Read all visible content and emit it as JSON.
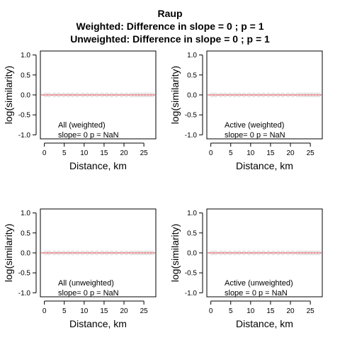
{
  "figure": {
    "title_lines": [
      "Raup",
      "Weighted: Difference in slope = 0 ; p = 1",
      "Unweighted: Difference in slope = 0 ; p = 1"
    ],
    "series_color": "#e8848a",
    "point_color": "#d9d9d9"
  },
  "chart_data": [
    {
      "type": "scatter",
      "panel": "top-left",
      "xlabel": "Distance, km",
      "ylabel": "log(similarity)",
      "xlim": [
        -1,
        28
      ],
      "ylim": [
        -1.1,
        1.1
      ],
      "xticks": [
        0,
        5,
        10,
        15,
        20,
        25
      ],
      "yticks": [
        -1.0,
        -0.5,
        0.0,
        0.5,
        1.0
      ],
      "annotation": [
        "All (weighted)",
        "slope= 0  p =  NaN"
      ],
      "fit_line": {
        "slope": 0,
        "intercept": 0,
        "x": [
          -1,
          28
        ]
      },
      "points": {
        "x": [
          0.3,
          1.2,
          2.5,
          3.6,
          4.8,
          6.0,
          7.1,
          8.3,
          9.6,
          10.8,
          12.0,
          13.2,
          14.5,
          15.7,
          16.9,
          18.1,
          19.4,
          20.6,
          21.8,
          22.6,
          23.4,
          24.1,
          24.9,
          25.6,
          26.4,
          27.1
        ],
        "y": 0
      }
    },
    {
      "type": "scatter",
      "panel": "top-right",
      "xlabel": "Distance, km",
      "ylabel": "log(similarity)",
      "xlim": [
        -1,
        28
      ],
      "ylim": [
        -1.1,
        1.1
      ],
      "xticks": [
        0,
        5,
        10,
        15,
        20,
        25
      ],
      "yticks": [
        -1.0,
        -0.5,
        0.0,
        0.5,
        1.0
      ],
      "annotation": [
        "Active (weighted)",
        "slope= 0  p =  NaN"
      ],
      "fit_line": {
        "slope": 0,
        "intercept": 0,
        "x": [
          -1,
          28
        ]
      },
      "points": {
        "x": [
          0.3,
          1.2,
          2.5,
          3.6,
          4.8,
          6.0,
          7.1,
          8.3,
          9.6,
          10.8,
          12.0,
          13.2,
          14.5,
          15.7,
          16.9,
          18.1,
          19.4,
          20.6,
          21.8,
          22.6,
          23.4,
          24.1,
          24.9,
          25.6,
          26.4,
          27.1
        ],
        "y": 0
      }
    },
    {
      "type": "scatter",
      "panel": "bottom-left",
      "xlabel": "Distance, km",
      "ylabel": "log(similarity)",
      "xlim": [
        -1,
        28
      ],
      "ylim": [
        -1.1,
        1.1
      ],
      "xticks": [
        0,
        5,
        10,
        15,
        20,
        25
      ],
      "yticks": [
        -1.0,
        -0.5,
        0.0,
        0.5,
        1.0
      ],
      "annotation": [
        "All (unweighted)",
        "slope= 0  p =  NaN"
      ],
      "fit_line": {
        "slope": 0,
        "intercept": 0,
        "x": [
          -1,
          28
        ]
      },
      "points": {
        "x": [
          0.3,
          1.2,
          2.5,
          3.6,
          4.8,
          6.0,
          7.1,
          8.3,
          9.6,
          10.8,
          12.0,
          13.2,
          14.5,
          15.7,
          16.9,
          18.1,
          19.4,
          20.6,
          21.8,
          22.6,
          23.4,
          24.1,
          24.9,
          25.6,
          26.4,
          27.1
        ],
        "y": 0
      }
    },
    {
      "type": "scatter",
      "panel": "bottom-right",
      "xlabel": "Distance, km",
      "ylabel": "log(similarity)",
      "xlim": [
        -1,
        28
      ],
      "ylim": [
        -1.1,
        1.1
      ],
      "xticks": [
        0,
        5,
        10,
        15,
        20,
        25
      ],
      "yticks": [
        -1.0,
        -0.5,
        0.0,
        0.5,
        1.0
      ],
      "annotation": [
        "Active (unweighted)",
        "slope =  0  p =  NaN"
      ],
      "fit_line": {
        "slope": 0,
        "intercept": 0,
        "x": [
          -1,
          28
        ]
      },
      "points": {
        "x": [
          0.3,
          1.2,
          2.5,
          3.6,
          4.8,
          6.0,
          7.1,
          8.3,
          9.6,
          10.8,
          12.0,
          13.2,
          14.5,
          15.7,
          16.9,
          18.1,
          19.4,
          20.6,
          21.8,
          22.6,
          23.4,
          24.1,
          24.9,
          25.6,
          26.4,
          27.1
        ],
        "y": 0
      }
    }
  ]
}
